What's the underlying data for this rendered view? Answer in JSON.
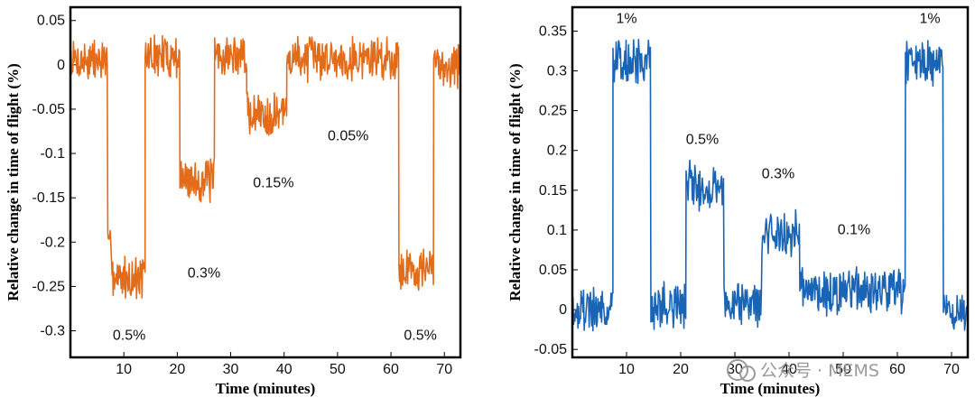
{
  "chart_data": [
    {
      "type": "line",
      "color": "#e36c1a",
      "xlabel": "Time (minutes)",
      "ylabel": "Relative change in time of flight (%)",
      "xlim": [
        0,
        73
      ],
      "ylim": [
        -0.33,
        0.065
      ],
      "xticks": [
        10,
        20,
        30,
        40,
        50,
        60,
        70
      ],
      "yticks": [
        0.05,
        0,
        -0.05,
        -0.1,
        -0.15,
        -0.2,
        -0.25,
        -0.3
      ],
      "ytick_labels": [
        "0.05",
        "0",
        "-0.05",
        "-0.1",
        "-0.15",
        "-0.2",
        "-0.25",
        "-0.3"
      ],
      "noise": 0.022,
      "segments": [
        {
          "from": 0,
          "to": 7,
          "level": 0.005
        },
        {
          "from": 7,
          "to": 8,
          "level": -0.21
        },
        {
          "from": 8,
          "to": 14,
          "level": -0.24
        },
        {
          "from": 14,
          "to": 20.5,
          "level": 0.01
        },
        {
          "from": 20.5,
          "to": 27,
          "level": -0.13
        },
        {
          "from": 27,
          "to": 33,
          "level": 0.01
        },
        {
          "from": 33,
          "to": 40.5,
          "level": -0.055
        },
        {
          "from": 40.5,
          "to": 61.5,
          "level": 0.008
        },
        {
          "from": 61.5,
          "to": 68,
          "level": -0.23
        },
        {
          "from": 68,
          "to": 73,
          "level": 0.0
        }
      ],
      "annotations": [
        {
          "text": "0.5%",
          "x": 11,
          "y": -0.31
        },
        {
          "text": "0.3%",
          "x": 25,
          "y": -0.24
        },
        {
          "text": "0.15%",
          "x": 38,
          "y": -0.138
        },
        {
          "text": "0.05%",
          "x": 52,
          "y": -0.085
        },
        {
          "text": "0.5%",
          "x": 65.5,
          "y": -0.31
        }
      ]
    },
    {
      "type": "line",
      "color": "#1a64b6",
      "xlabel": "Time (minutes)",
      "ylabel": "Relative change in time of flight (%)",
      "xlim": [
        0,
        73
      ],
      "ylim": [
        -0.06,
        0.38
      ],
      "xticks": [
        10,
        20,
        30,
        40,
        50,
        60,
        70
      ],
      "yticks": [
        0.35,
        0.3,
        0.25,
        0.2,
        0.15,
        0.1,
        0.05,
        0,
        -0.05
      ],
      "ytick_labels": [
        "0.35",
        "0.3",
        "0.25",
        "0.2",
        "0.15",
        "0.1",
        "0.05",
        "0",
        "-0.05"
      ],
      "noise": 0.026,
      "segments": [
        {
          "from": 0,
          "to": 7.5,
          "level": 0.0
        },
        {
          "from": 7.5,
          "to": 14.5,
          "level": 0.31
        },
        {
          "from": 14.5,
          "to": 21,
          "level": 0.005
        },
        {
          "from": 21,
          "to": 28,
          "level": 0.155
        },
        {
          "from": 28,
          "to": 35,
          "level": 0.01
        },
        {
          "from": 35,
          "to": 42,
          "level": 0.095
        },
        {
          "from": 42,
          "to": 61.5,
          "level": 0.022
        },
        {
          "from": 61.5,
          "to": 68.5,
          "level": 0.31
        },
        {
          "from": 68.5,
          "to": 73,
          "level": 0.0
        }
      ],
      "annotations": [
        {
          "text": "1%",
          "x": 10,
          "y": 0.36
        },
        {
          "text": "0.5%",
          "x": 24,
          "y": 0.208
        },
        {
          "text": "0.3%",
          "x": 38,
          "y": 0.165
        },
        {
          "text": "0.1%",
          "x": 52,
          "y": 0.095
        },
        {
          "text": "1%",
          "x": 66,
          "y": 0.36
        }
      ]
    }
  ],
  "watermark": "公众号 · MEMS"
}
